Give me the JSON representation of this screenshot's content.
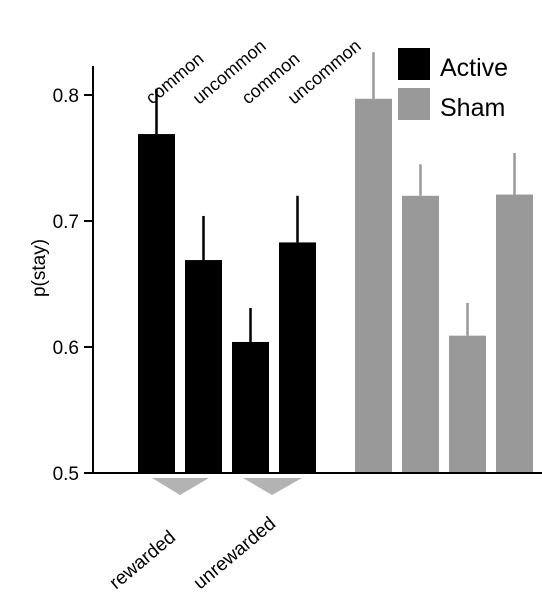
{
  "chart_data": {
    "type": "bar",
    "title": "",
    "xlabel": "",
    "ylabel": "p(stay)",
    "ylim": [
      0.5,
      0.85
    ],
    "yticks": [
      0.5,
      0.6,
      0.7,
      0.8
    ],
    "ytick_labels": [
      "0.5",
      "0.6",
      "0.7",
      "0.8"
    ],
    "categories": [
      "common",
      "uncommon",
      "common",
      "uncommon"
    ],
    "category_groups": [
      "rewarded",
      "unrewarded"
    ],
    "legend_position": "top-right",
    "series": [
      {
        "name": "Active",
        "color": "#000000",
        "values": [
          0.769,
          0.669,
          0.604,
          0.683
        ],
        "errors": [
          0.036,
          0.035,
          0.027,
          0.037
        ]
      },
      {
        "name": "Sham",
        "color": "#999999",
        "values": [
          0.797,
          0.72,
          0.609,
          0.721
        ],
        "errors": [
          0.037,
          0.025,
          0.026,
          0.033
        ]
      }
    ],
    "group_marker_color": "#b3b3b3"
  }
}
